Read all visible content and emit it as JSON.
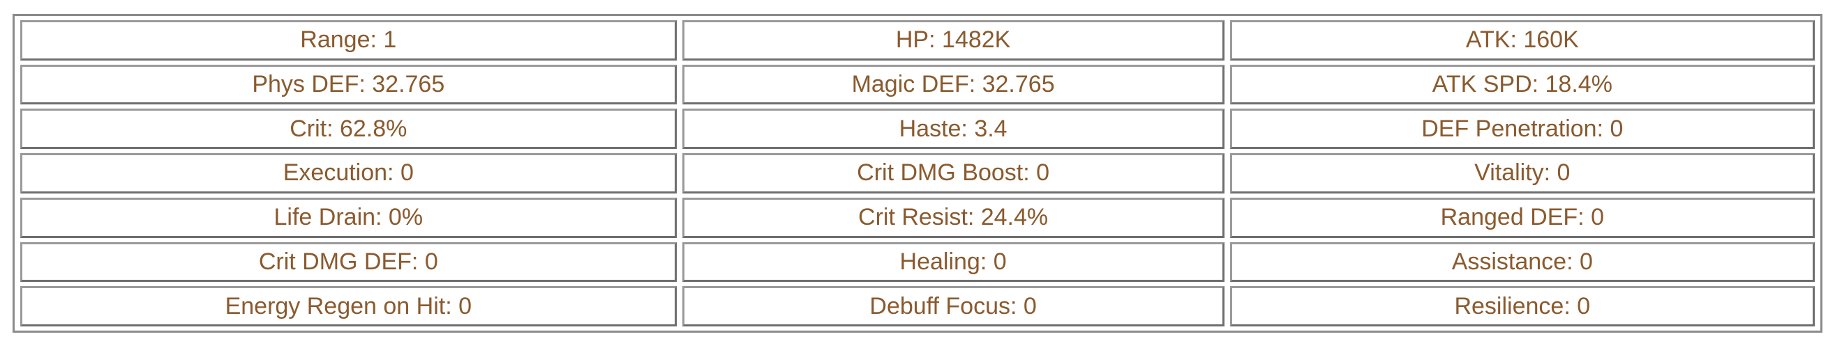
{
  "stats": [
    [
      "Range: 1",
      "HP: 1482K",
      "ATK: 160K"
    ],
    [
      "Phys DEF: 32.765",
      "Magic DEF: 32.765",
      "ATK SPD: 18.4%"
    ],
    [
      "Crit: 62.8%",
      "Haste: 3.4",
      "DEF Penetration: 0"
    ],
    [
      "Execution: 0",
      "Crit DMG Boost: 0",
      "Vitality: 0"
    ],
    [
      "Life Drain: 0%",
      "Crit Resist: 24.4%",
      "Ranged DEF: 0"
    ],
    [
      "Crit DMG DEF: 0",
      "Healing: 0",
      "Assistance: 0"
    ],
    [
      "Energy Regen on Hit: 0",
      "Debuff Focus: 0",
      "Resilience: 0"
    ]
  ],
  "colors": {
    "text": "#8a5a2e",
    "border": "#6e6e6e"
  }
}
